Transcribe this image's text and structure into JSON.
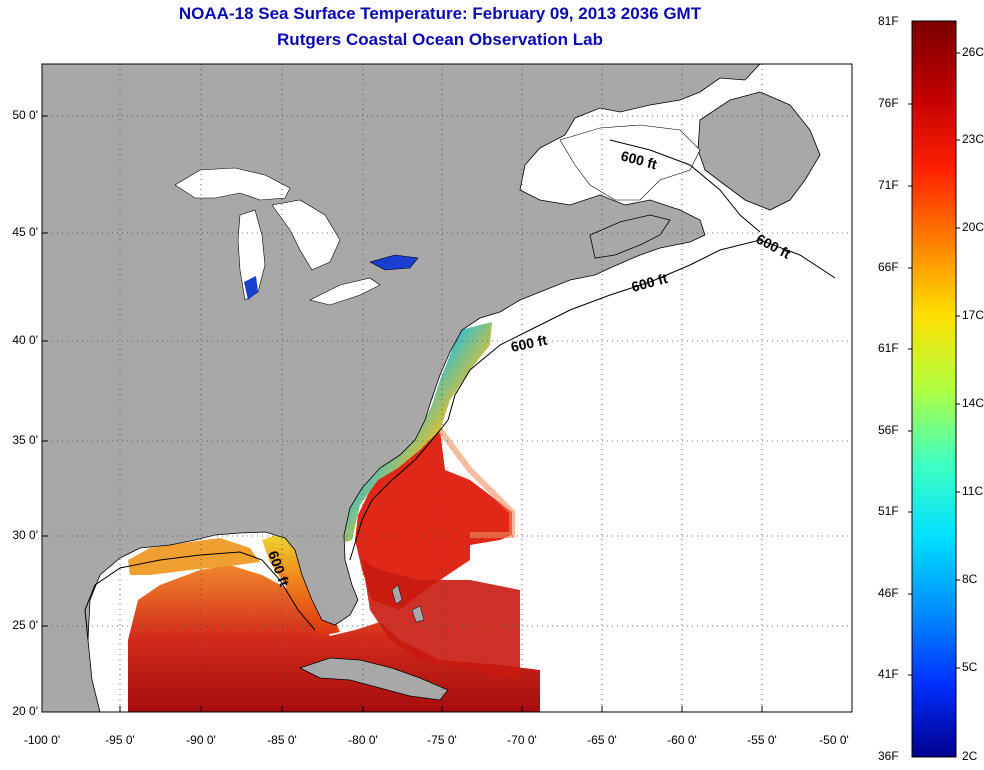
{
  "title": "NOAA-18 Sea Surface Temperature:  February 09, 2013 2036 GMT",
  "subtitle": "Rutgers Coastal Ocean Observation Lab",
  "map": {
    "lat_labels": [
      "50 0'",
      "45 0'",
      "40 0'",
      "35 0'",
      "30 0'",
      "25 0'",
      "20 0'"
    ],
    "lon_labels": [
      "-100 0'",
      "-95 0'",
      "-90 0'",
      "-85 0'",
      "-80 0'",
      "-75 0'",
      "-70 0'",
      "-65 0'",
      "-60 0'",
      "-55 0'",
      "-50 0'"
    ],
    "isobath_labels": [
      "600 ft",
      "600 ft",
      "600 ft",
      "600 ft",
      "600 ft"
    ],
    "colors": {
      "land": "#a8a8a8",
      "ocean": "#ffffff",
      "title": "#0a0ab0",
      "grid": "#444444"
    }
  },
  "colorbar": {
    "f_labels": [
      "81F",
      "76F",
      "71F",
      "66F",
      "61F",
      "56F",
      "51F",
      "46F",
      "41F",
      "36F"
    ],
    "c_labels": [
      "26C",
      "23C",
      "20C",
      "17C",
      "14C",
      "11C",
      "8C",
      "5C",
      "2C"
    ],
    "scale_stops": [
      "#7a0000",
      "#c00000",
      "#ff2000",
      "#ff8000",
      "#ffe000",
      "#b0ff40",
      "#40ffc0",
      "#00e0ff",
      "#0090ff",
      "#0030ff",
      "#00008c"
    ]
  }
}
